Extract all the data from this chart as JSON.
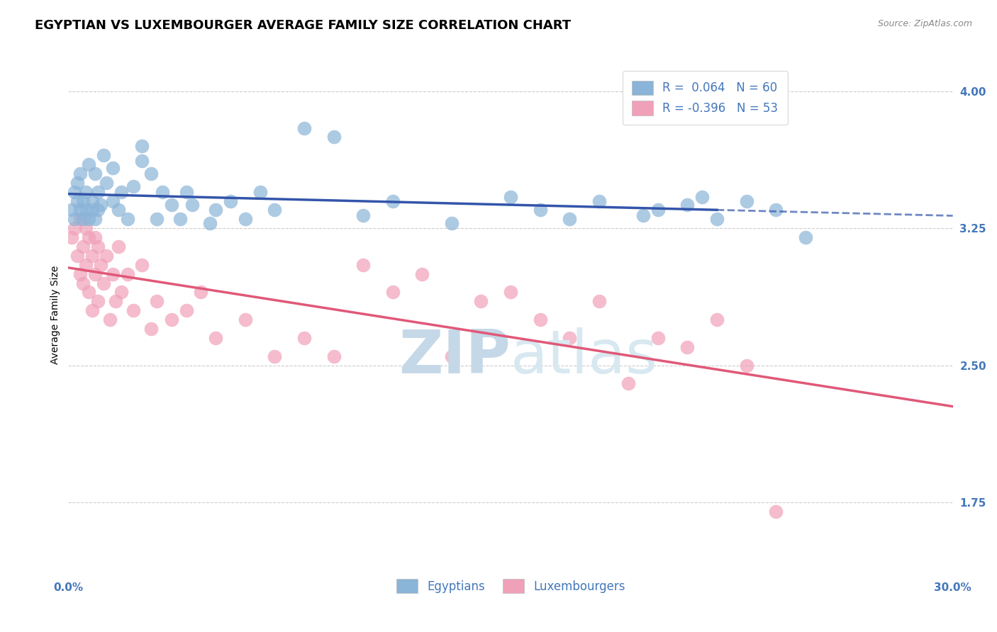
{
  "title": "EGYPTIAN VS LUXEMBOURGER AVERAGE FAMILY SIZE CORRELATION CHART",
  "source_text": "Source: ZipAtlas.com",
  "ylabel": "Average Family Size",
  "xlim": [
    0.0,
    0.3
  ],
  "ylim": [
    1.35,
    4.2
  ],
  "yticks": [
    1.75,
    2.5,
    3.25,
    4.0
  ],
  "xticks": [
    0.0,
    0.05,
    0.1,
    0.15,
    0.2,
    0.25,
    0.3
  ],
  "background_color": "#ffffff",
  "grid_color": "#cccccc",
  "blue_color": "#8ab4d8",
  "pink_color": "#f0a0b8",
  "blue_line_color": "#3355aa",
  "pink_line_color": "#e05878",
  "legend_blue_label": "R =  0.064   N = 60",
  "legend_pink_label": "R = -0.396   N = 53",
  "legend_bottom_blue": "Egyptians",
  "legend_bottom_pink": "Luxembourgers",
  "blue_scatter_x": [
    0.001,
    0.002,
    0.002,
    0.003,
    0.003,
    0.004,
    0.004,
    0.005,
    0.005,
    0.006,
    0.006,
    0.007,
    0.007,
    0.008,
    0.008,
    0.009,
    0.009,
    0.01,
    0.01,
    0.011,
    0.012,
    0.013,
    0.015,
    0.015,
    0.017,
    0.018,
    0.02,
    0.022,
    0.025,
    0.025,
    0.028,
    0.03,
    0.032,
    0.035,
    0.038,
    0.04,
    0.042,
    0.048,
    0.05,
    0.055,
    0.06,
    0.065,
    0.07,
    0.08,
    0.09,
    0.1,
    0.11,
    0.13,
    0.15,
    0.16,
    0.17,
    0.18,
    0.195,
    0.2,
    0.21,
    0.215,
    0.22,
    0.23,
    0.24,
    0.25
  ],
  "blue_scatter_y": [
    3.35,
    3.3,
    3.45,
    3.4,
    3.5,
    3.35,
    3.55,
    3.3,
    3.4,
    3.35,
    3.45,
    3.3,
    3.6,
    3.35,
    3.4,
    3.3,
    3.55,
    3.35,
    3.45,
    3.38,
    3.65,
    3.5,
    3.4,
    3.58,
    3.35,
    3.45,
    3.3,
    3.48,
    3.62,
    3.7,
    3.55,
    3.3,
    3.45,
    3.38,
    3.3,
    3.45,
    3.38,
    3.28,
    3.35,
    3.4,
    3.3,
    3.45,
    3.35,
    3.8,
    3.75,
    3.32,
    3.4,
    3.28,
    3.42,
    3.35,
    3.3,
    3.4,
    3.32,
    3.35,
    3.38,
    3.42,
    3.3,
    3.4,
    3.35,
    3.2
  ],
  "pink_scatter_x": [
    0.001,
    0.002,
    0.003,
    0.004,
    0.004,
    0.005,
    0.005,
    0.006,
    0.006,
    0.007,
    0.007,
    0.008,
    0.008,
    0.009,
    0.009,
    0.01,
    0.01,
    0.011,
    0.012,
    0.013,
    0.014,
    0.015,
    0.016,
    0.017,
    0.018,
    0.02,
    0.022,
    0.025,
    0.028,
    0.03,
    0.035,
    0.04,
    0.045,
    0.05,
    0.06,
    0.07,
    0.08,
    0.09,
    0.1,
    0.11,
    0.12,
    0.13,
    0.14,
    0.15,
    0.16,
    0.17,
    0.18,
    0.19,
    0.2,
    0.21,
    0.22,
    0.23,
    0.24
  ],
  "pink_scatter_y": [
    3.2,
    3.25,
    3.1,
    3.3,
    3.0,
    3.15,
    2.95,
    3.25,
    3.05,
    3.2,
    2.9,
    3.1,
    2.8,
    3.2,
    3.0,
    3.15,
    2.85,
    3.05,
    2.95,
    3.1,
    2.75,
    3.0,
    2.85,
    3.15,
    2.9,
    3.0,
    2.8,
    3.05,
    2.7,
    2.85,
    2.75,
    2.8,
    2.9,
    2.65,
    2.75,
    2.55,
    2.65,
    2.55,
    3.05,
    2.9,
    3.0,
    2.55,
    2.85,
    2.9,
    2.75,
    2.65,
    2.85,
    2.4,
    2.65,
    2.6,
    2.75,
    2.5,
    1.7
  ],
  "title_fontsize": 13,
  "axis_label_fontsize": 10,
  "tick_fontsize": 11,
  "legend_fontsize": 12
}
